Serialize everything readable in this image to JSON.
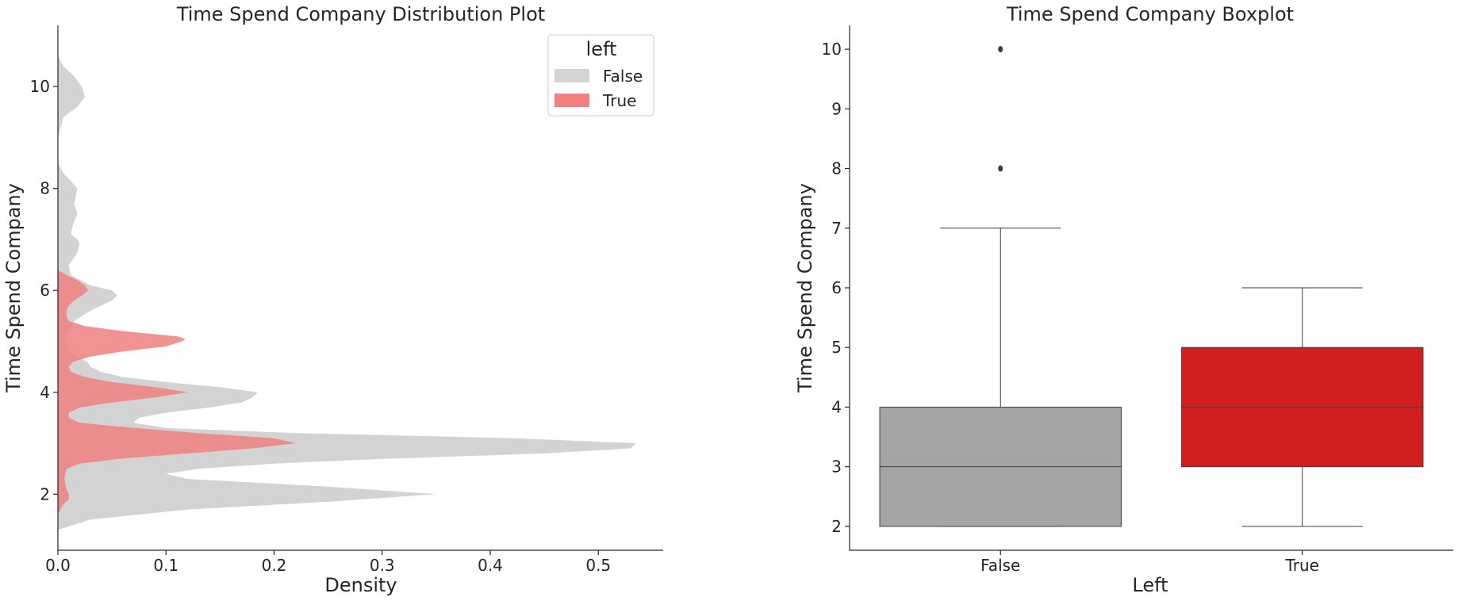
{
  "chart_data": [
    {
      "type": "area",
      "title": "Time Spend Company Distribution Plot",
      "xlabel": "Density",
      "ylabel": "Time Spend Company",
      "xlim": [
        0,
        0.56
      ],
      "ylim": [
        0.9,
        11.2
      ],
      "x_ticks": [
        "0.0",
        "0.1",
        "0.2",
        "0.3",
        "0.4",
        "0.5"
      ],
      "y_ticks": [
        "2",
        "4",
        "6",
        "8",
        "10"
      ],
      "legend": {
        "title": "left",
        "position": "top-right"
      },
      "series": [
        {
          "name": "False",
          "color": "#d3d3d3",
          "y": [
            1.3,
            1.5,
            1.7,
            1.85,
            2.0,
            2.15,
            2.3,
            2.4,
            2.5,
            2.6,
            2.7,
            2.8,
            2.9,
            3.0,
            3.1,
            3.2,
            3.3,
            3.4,
            3.5,
            3.6,
            3.7,
            3.8,
            3.9,
            4.0,
            4.1,
            4.2,
            4.3,
            4.4,
            4.5,
            4.6,
            4.8,
            5.0,
            5.2,
            5.4,
            5.6,
            5.8,
            5.9,
            6.0,
            6.1,
            6.3,
            6.5,
            6.7,
            6.9,
            7.0,
            7.1,
            7.3,
            7.5,
            7.7,
            7.9,
            8.0,
            8.1,
            8.3,
            8.5,
            9.0,
            9.4,
            9.6,
            9.8,
            10.0,
            10.2,
            10.4,
            10.6
          ],
          "density": [
            0.0,
            0.03,
            0.12,
            0.25,
            0.35,
            0.25,
            0.12,
            0.1,
            0.13,
            0.2,
            0.31,
            0.45,
            0.53,
            0.535,
            0.42,
            0.22,
            0.1,
            0.07,
            0.075,
            0.1,
            0.14,
            0.17,
            0.18,
            0.185,
            0.15,
            0.1,
            0.06,
            0.04,
            0.03,
            0.027,
            0.01,
            0.007,
            0.01,
            0.015,
            0.03,
            0.05,
            0.055,
            0.05,
            0.03,
            0.012,
            0.01,
            0.017,
            0.02,
            0.018,
            0.012,
            0.014,
            0.018,
            0.015,
            0.017,
            0.018,
            0.014,
            0.005,
            0.0,
            0.0,
            0.005,
            0.018,
            0.025,
            0.022,
            0.015,
            0.005,
            0.0
          ]
        },
        {
          "name": "True",
          "color": "#f08080",
          "y": [
            1.6,
            1.8,
            1.9,
            2.0,
            2.1,
            2.3,
            2.5,
            2.6,
            2.7,
            2.8,
            2.9,
            3.0,
            3.1,
            3.2,
            3.3,
            3.4,
            3.5,
            3.6,
            3.7,
            3.8,
            3.9,
            4.0,
            4.1,
            4.2,
            4.3,
            4.4,
            4.5,
            4.6,
            4.7,
            4.8,
            4.9,
            5.0,
            5.05,
            5.1,
            5.2,
            5.3,
            5.4,
            5.5,
            5.6,
            5.7,
            5.8,
            5.9,
            6.0,
            6.1,
            6.2,
            6.3,
            6.4
          ],
          "density": [
            0.0,
            0.005,
            0.01,
            0.01,
            0.008,
            0.006,
            0.008,
            0.02,
            0.06,
            0.12,
            0.18,
            0.22,
            0.2,
            0.13,
            0.07,
            0.02,
            0.01,
            0.01,
            0.02,
            0.05,
            0.09,
            0.12,
            0.09,
            0.05,
            0.025,
            0.012,
            0.01,
            0.014,
            0.03,
            0.06,
            0.1,
            0.115,
            0.118,
            0.11,
            0.06,
            0.025,
            0.01,
            0.008,
            0.008,
            0.01,
            0.015,
            0.022,
            0.028,
            0.025,
            0.018,
            0.008,
            0.0
          ]
        }
      ]
    },
    {
      "type": "box",
      "title": "Time Spend Company Boxplot",
      "xlabel": "Left",
      "ylabel": "Time Spend Company",
      "ylim": [
        1.6,
        10.4
      ],
      "y_ticks": [
        "2",
        "3",
        "4",
        "5",
        "6",
        "7",
        "8",
        "9",
        "10"
      ],
      "categories": [
        "False",
        "True"
      ],
      "boxes": [
        {
          "name": "False",
          "color": "#a5a5a5",
          "whisker_low": 2,
          "q1": 2,
          "median": 3,
          "q3": 4,
          "whisker_high": 7,
          "outliers": [
            8,
            10
          ]
        },
        {
          "name": "True",
          "color": "#d11f1f",
          "whisker_low": 2,
          "q1": 3,
          "median": 4,
          "q3": 5,
          "whisker_high": 6,
          "outliers": []
        }
      ]
    }
  ]
}
